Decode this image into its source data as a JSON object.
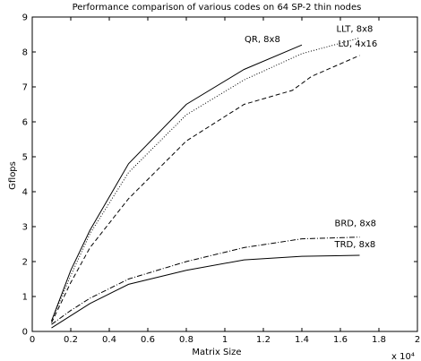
{
  "chart_data": {
    "type": "line",
    "title": "Performance comparison of various codes on 64 SP-2 thin nodes",
    "xlabel": "Matrix Size",
    "ylabel": "Gflops",
    "x_multiplier": "x 10⁴",
    "xlim": [
      0,
      2
    ],
    "ylim": [
      0,
      9
    ],
    "x_ticks": [
      "0",
      "0.2",
      "0.4",
      "0.6",
      "0.8",
      "1",
      "1.2",
      "1.4",
      "1.6",
      "1.8",
      "2"
    ],
    "y_ticks": [
      "0",
      "1",
      "2",
      "3",
      "4",
      "5",
      "6",
      "7",
      "8",
      "9"
    ],
    "grid": false,
    "series": [
      {
        "name": "QR, 8x8",
        "style": "solid",
        "x": [
          0.1,
          0.2,
          0.3,
          0.5,
          0.8,
          1.1,
          1.4
        ],
        "y": [
          0.3,
          1.75,
          2.9,
          4.8,
          6.5,
          7.5,
          8.2
        ]
      },
      {
        "name": "LLT, 8x8",
        "style": "dotted",
        "x": [
          0.1,
          0.2,
          0.3,
          0.5,
          0.8,
          1.1,
          1.4,
          1.7
        ],
        "y": [
          0.3,
          1.6,
          2.8,
          4.55,
          6.2,
          7.2,
          7.95,
          8.4
        ]
      },
      {
        "name": "LU, 4x16",
        "style": "dashed",
        "x": [
          0.1,
          0.2,
          0.3,
          0.5,
          0.8,
          1.1,
          1.35,
          1.45,
          1.7
        ],
        "y": [
          0.25,
          1.4,
          2.4,
          3.8,
          5.45,
          6.5,
          6.9,
          7.3,
          7.9
        ]
      },
      {
        "name": "BRD, 8x8",
        "style": "dashdot",
        "x": [
          0.1,
          0.2,
          0.3,
          0.5,
          0.8,
          1.1,
          1.4,
          1.7
        ],
        "y": [
          0.2,
          0.6,
          0.95,
          1.5,
          2.0,
          2.4,
          2.65,
          2.7
        ]
      },
      {
        "name": "TRD, 8x8",
        "style": "solid",
        "x": [
          0.1,
          0.2,
          0.3,
          0.5,
          0.8,
          1.1,
          1.4,
          1.7
        ],
        "y": [
          0.1,
          0.45,
          0.8,
          1.35,
          1.75,
          2.05,
          2.15,
          2.18
        ]
      }
    ]
  }
}
